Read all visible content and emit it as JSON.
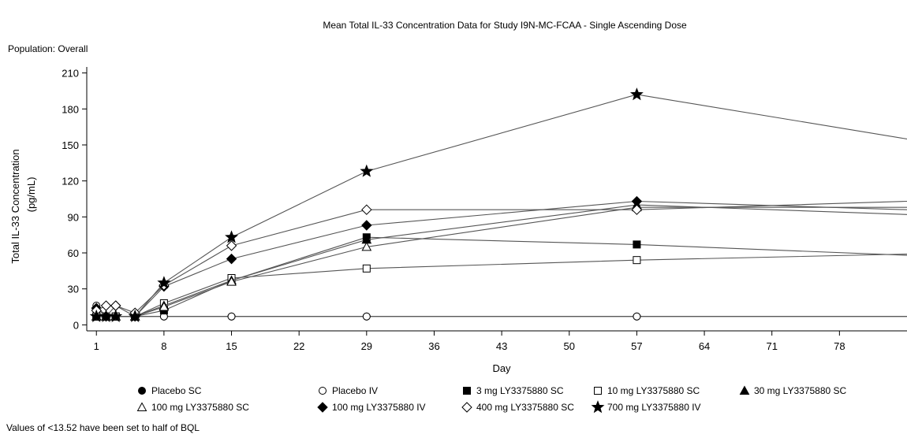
{
  "chart_data": {
    "type": "line",
    "title": "Mean Total IL-33 Concentration Data for Study I9N-MC-FCAA - Single Ascending Dose",
    "subtitle": "Population: Overall",
    "xlabel": "Day",
    "ylabel": "Total IL-33 Concentration",
    "ylabel_unit": "(pg/mL)",
    "footnote": "Values of <13.52 have been set to half of BQL",
    "xlim": [
      0,
      85
    ],
    "ylim": [
      -5,
      215
    ],
    "xticks": [
      1,
      8,
      15,
      22,
      29,
      36,
      43,
      50,
      57,
      64,
      71,
      78
    ],
    "yticks": [
      0,
      30,
      60,
      90,
      120,
      150,
      180,
      210
    ],
    "grid": false,
    "legend_position": "bottom",
    "series": [
      {
        "name": "Placebo SC",
        "marker": "filled-circle",
        "x": [
          1,
          2,
          3,
          5,
          8,
          15,
          29,
          57,
          85
        ],
        "y": [
          7,
          7,
          7,
          7,
          7,
          7,
          7,
          7,
          7
        ]
      },
      {
        "name": "Placebo IV",
        "marker": "open-circle",
        "x": [
          1,
          2,
          3,
          5,
          8,
          15,
          29,
          57,
          85
        ],
        "y": [
          16,
          7,
          7,
          7,
          7,
          7,
          7,
          7,
          7
        ]
      },
      {
        "name": "3 mg LY3375880 SC",
        "marker": "filled-square",
        "x": [
          1,
          2,
          3,
          5,
          8,
          15,
          29,
          57,
          85
        ],
        "y": [
          7,
          7,
          7,
          7,
          12,
          37,
          73,
          67,
          58
        ]
      },
      {
        "name": "10 mg LY3375880 SC",
        "marker": "open-square",
        "x": [
          1,
          2,
          3,
          5,
          8,
          15,
          29,
          57,
          85
        ],
        "y": [
          7,
          7,
          7,
          7,
          18,
          39,
          47,
          54,
          59
        ]
      },
      {
        "name": "30 mg LY3375880 SC",
        "marker": "filled-triangle",
        "x": [
          1,
          2,
          3,
          5,
          8,
          15,
          29,
          57,
          85
        ],
        "y": [
          7,
          7,
          7,
          7,
          16,
          37,
          71,
          100,
          92
        ]
      },
      {
        "name": "100 mg LY3375880 SC",
        "marker": "open-triangle",
        "x": [
          1,
          2,
          3,
          5,
          8,
          15,
          29,
          57,
          85
        ],
        "y": [
          7,
          7,
          7,
          7,
          15,
          36,
          65,
          98,
          98
        ]
      },
      {
        "name": "100 mg LY3375880 IV",
        "marker": "filled-diamond",
        "x": [
          1,
          2,
          3,
          5,
          8,
          15,
          29,
          57,
          85
        ],
        "y": [
          14,
          7,
          16,
          7,
          32,
          55,
          83,
          103,
          96
        ]
      },
      {
        "name": "400 mg LY3375880 SC",
        "marker": "open-diamond",
        "x": [
          1,
          2,
          3,
          5,
          8,
          15,
          29,
          57,
          85
        ],
        "y": [
          12,
          16,
          16,
          10,
          33,
          66,
          96,
          96,
          103
        ]
      },
      {
        "name": "700 mg LY3375880 IV",
        "marker": "filled-star",
        "x": [
          1,
          2,
          3,
          5,
          8,
          15,
          29,
          57,
          85
        ],
        "y": [
          7,
          7,
          7,
          7,
          35,
          73,
          128,
          192,
          155
        ]
      }
    ]
  }
}
